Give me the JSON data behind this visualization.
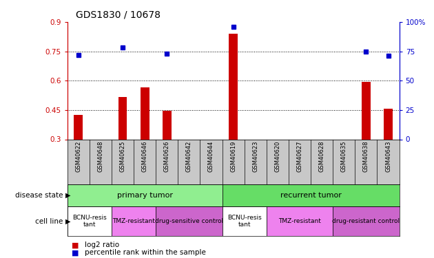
{
  "title": "GDS1830 / 10678",
  "samples": [
    "GSM40622",
    "GSM40648",
    "GSM40625",
    "GSM40646",
    "GSM40626",
    "GSM40642",
    "GSM40644",
    "GSM40619",
    "GSM40623",
    "GSM40620",
    "GSM40627",
    "GSM40628",
    "GSM40635",
    "GSM40638",
    "GSM40643"
  ],
  "log2_ratio": [
    0.425,
    null,
    0.515,
    0.565,
    0.445,
    null,
    null,
    0.84,
    null,
    null,
    null,
    null,
    null,
    0.595,
    0.455
  ],
  "percentile_rank": [
    72,
    null,
    78,
    null,
    73,
    null,
    null,
    96,
    null,
    null,
    null,
    null,
    null,
    75,
    71
  ],
  "ylim_left": [
    0.3,
    0.9
  ],
  "ylim_right": [
    0,
    100
  ],
  "yticks_left": [
    0.3,
    0.45,
    0.6,
    0.75,
    0.9
  ],
  "yticks_right": [
    0,
    25,
    50,
    75,
    100
  ],
  "left_color": "#cc0000",
  "right_color": "#0000cc",
  "bar_color": "#cc0000",
  "dot_color": "#0000cc",
  "tick_label_area_bg": "#c8c8c8",
  "primary_color": "#90EE90",
  "recurrent_color": "#66dd66",
  "bcnu_color": "#ffffff",
  "tmz_color": "#ee82ee",
  "drug_sensitive_color": "#cc66cc",
  "drug_resistant_color": "#cc66cc",
  "cell_line_groups": [
    {
      "label": "BCNU-resis\ntant",
      "xstart": -0.5,
      "xend": 1.5,
      "color": "#ffffff"
    },
    {
      "label": "TMZ-resistant",
      "xstart": 1.5,
      "xend": 3.5,
      "color": "#ee82ee"
    },
    {
      "label": "drug-sensitive control",
      "xstart": 3.5,
      "xend": 6.5,
      "color": "#cc66cc"
    },
    {
      "label": "BCNU-resis\ntant",
      "xstart": 6.5,
      "xend": 8.5,
      "color": "#ffffff"
    },
    {
      "label": "TMZ-resistant",
      "xstart": 8.5,
      "xend": 11.5,
      "color": "#ee82ee"
    },
    {
      "label": "drug-resistant control",
      "xstart": 11.5,
      "xend": 14.5,
      "color": "#cc66cc"
    }
  ]
}
